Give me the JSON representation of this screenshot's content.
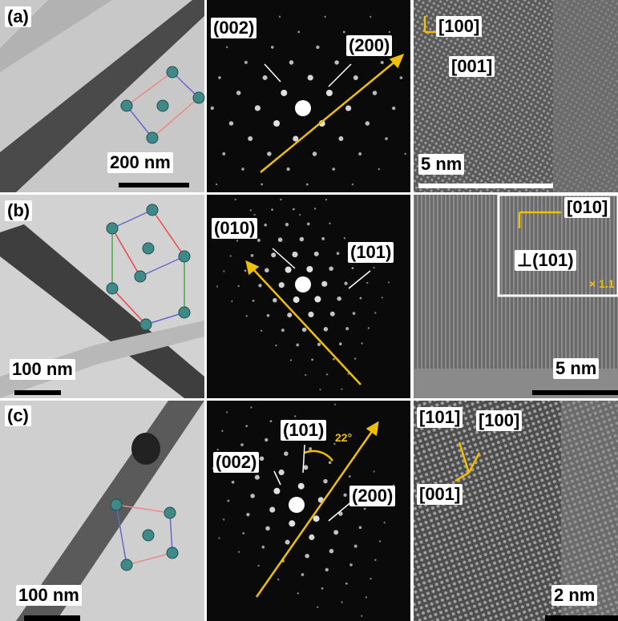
{
  "panels": [
    {
      "label": "(a)",
      "tem_scale": "200 nm",
      "diffraction": [
        "(002)",
        "(200)"
      ],
      "hrtem": [
        "[100]",
        "[001]"
      ],
      "hrtem_scale": "5 nm"
    },
    {
      "label": "(b)",
      "tem_scale": "100 nm",
      "diffraction": [
        "(010)",
        "(101)"
      ],
      "hrtem": [
        "[010]",
        "⊥(101)",
        "× 1.1"
      ],
      "hrtem_scale": "5 nm"
    },
    {
      "label": "(c)",
      "tem_scale": "100 nm",
      "diffraction": [
        "(002)",
        "(101)",
        "22°",
        "(200)"
      ],
      "hrtem": [
        "[101]",
        "[100]",
        "[001]"
      ],
      "hrtem_scale": "2 nm"
    }
  ]
}
